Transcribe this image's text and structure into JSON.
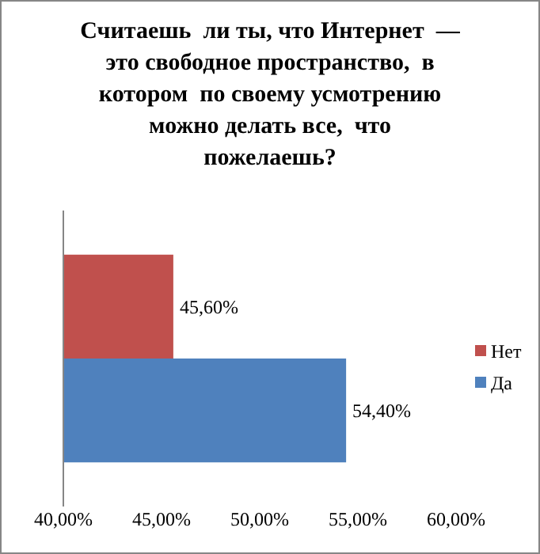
{
  "chart_data": {
    "type": "bar",
    "orientation": "horizontal",
    "title": "Считаешь  ли ты, что Интернет  —\nэто свободное пространство,  в\nкотором  по своему усмотрению\nможно делать все,  что\nпожелаешь?",
    "categories": [
      null
    ],
    "series": [
      {
        "name": "Нет",
        "color": "#c0504d",
        "values": [
          45.6
        ],
        "value_labels": [
          "45,60%"
        ]
      },
      {
        "name": "Да",
        "color": "#4f81bd",
        "values": [
          54.4
        ],
        "value_labels": [
          "54,40%"
        ]
      }
    ],
    "xlim": [
      40,
      60
    ],
    "xticks": [
      {
        "value": 40,
        "label": "40,00%"
      },
      {
        "value": 45,
        "label": "45,00%"
      },
      {
        "value": 50,
        "label": "50,00%"
      },
      {
        "value": 55,
        "label": "55,00%"
      },
      {
        "value": 60,
        "label": "60,00%"
      }
    ],
    "legend": "right",
    "grid": false
  }
}
